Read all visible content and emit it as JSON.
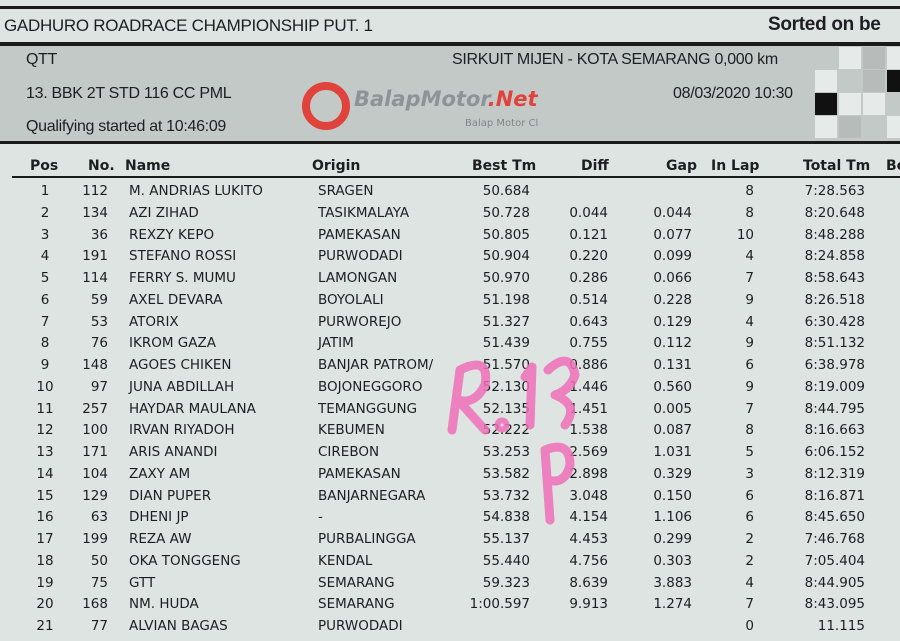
{
  "header": {
    "event_title": "GADHURO ROADRACE CHAMPIONSHIP PUT. 1",
    "sort_label": "Sorted on be",
    "session": "QTT",
    "circuit": "SIRKUIT MIJEN - KOTA SEMARANG 0,000 km",
    "class_name": "13. BBK 2T STD 116 CC PML",
    "datetime": "08/03/2020 10:30",
    "qualifying_start": "Qualifying started at 10:46:09"
  },
  "watermark": {
    "brand": "BalapMotor.Net",
    "tagline": "Balap Motor Cl"
  },
  "handwriting": {
    "note": "R.13 P",
    "color": "#f06fb8"
  },
  "table": {
    "columns": [
      "Pos",
      "No.",
      "Name",
      "Origin",
      "Best Tm",
      "Diff",
      "Gap",
      "In Lap",
      "Total Tm",
      "Be"
    ],
    "rows": [
      {
        "pos": "1",
        "no": "112",
        "name": "M. ANDRIAS LUKITO",
        "origin": "SRAGEN",
        "best": "50.684",
        "diff": "",
        "gap": "",
        "lap": "8",
        "total": "7:28.563"
      },
      {
        "pos": "2",
        "no": "134",
        "name": "AZI ZIHAD",
        "origin": "TASIKMALAYA",
        "best": "50.728",
        "diff": "0.044",
        "gap": "0.044",
        "lap": "8",
        "total": "8:20.648"
      },
      {
        "pos": "3",
        "no": "36",
        "name": "REXZY KEPO",
        "origin": "PAMEKASAN",
        "best": "50.805",
        "diff": "0.121",
        "gap": "0.077",
        "lap": "10",
        "total": "8:48.288"
      },
      {
        "pos": "4",
        "no": "191",
        "name": "STEFANO ROSSI",
        "origin": "PURWODADI",
        "best": "50.904",
        "diff": "0.220",
        "gap": "0.099",
        "lap": "4",
        "total": "8:24.858"
      },
      {
        "pos": "5",
        "no": "114",
        "name": "FERRY S. MUMU",
        "origin": "LAMONGAN",
        "best": "50.970",
        "diff": "0.286",
        "gap": "0.066",
        "lap": "7",
        "total": "8:58.643"
      },
      {
        "pos": "6",
        "no": "59",
        "name": "AXEL DEVARA",
        "origin": "BOYOLALI",
        "best": "51.198",
        "diff": "0.514",
        "gap": "0.228",
        "lap": "9",
        "total": "8:26.518"
      },
      {
        "pos": "7",
        "no": "53",
        "name": "ATORIX",
        "origin": "PURWOREJO",
        "best": "51.327",
        "diff": "0.643",
        "gap": "0.129",
        "lap": "4",
        "total": "6:30.428"
      },
      {
        "pos": "8",
        "no": "76",
        "name": "IKROM GAZA",
        "origin": "JATIM",
        "best": "51.439",
        "diff": "0.755",
        "gap": "0.112",
        "lap": "9",
        "total": "8:51.132"
      },
      {
        "pos": "9",
        "no": "148",
        "name": "AGOES CHIKEN",
        "origin": "BANJAR PATROM/",
        "best": "51.570",
        "diff": "0.886",
        "gap": "0.131",
        "lap": "6",
        "total": "6:38.978"
      },
      {
        "pos": "10",
        "no": "97",
        "name": "JUNA ABDILLAH",
        "origin": "BOJONEGGORO",
        "best": "52.130",
        "diff": "1.446",
        "gap": "0.560",
        "lap": "9",
        "total": "8:19.009"
      },
      {
        "pos": "11",
        "no": "257",
        "name": "HAYDAR MAULANA",
        "origin": "TEMANGGUNG",
        "best": "52.135",
        "diff": "1.451",
        "gap": "0.005",
        "lap": "7",
        "total": "8:44.795"
      },
      {
        "pos": "12",
        "no": "100",
        "name": "IRVAN RIYADOH",
        "origin": "KEBUMEN",
        "best": "52.222",
        "diff": "1.538",
        "gap": "0.087",
        "lap": "8",
        "total": "8:16.663"
      },
      {
        "pos": "13",
        "no": "171",
        "name": "ARIS ANANDI",
        "origin": "CIREBON",
        "best": "53.253",
        "diff": "2.569",
        "gap": "1.031",
        "lap": "5",
        "total": "6:06.152"
      },
      {
        "pos": "14",
        "no": "104",
        "name": "ZAXY AM",
        "origin": "PAMEKASAN",
        "best": "53.582",
        "diff": "2.898",
        "gap": "0.329",
        "lap": "3",
        "total": "8:12.319"
      },
      {
        "pos": "15",
        "no": "129",
        "name": "DIAN PUPER",
        "origin": "BANJARNEGARA",
        "best": "53.732",
        "diff": "3.048",
        "gap": "0.150",
        "lap": "6",
        "total": "8:16.871"
      },
      {
        "pos": "16",
        "no": "63",
        "name": "DHENI JP",
        "origin": "-",
        "best": "54.838",
        "diff": "4.154",
        "gap": "1.106",
        "lap": "6",
        "total": "8:45.650"
      },
      {
        "pos": "17",
        "no": "199",
        "name": "REZA AW",
        "origin": "PURBALINGGA",
        "best": "55.137",
        "diff": "4.453",
        "gap": "0.299",
        "lap": "2",
        "total": "7:46.768"
      },
      {
        "pos": "18",
        "no": "50",
        "name": "OKA TONGGENG",
        "origin": "KENDAL",
        "best": "55.440",
        "diff": "4.756",
        "gap": "0.303",
        "lap": "2",
        "total": "7:05.404"
      },
      {
        "pos": "19",
        "no": "75",
        "name": "GTT",
        "origin": "SEMARANG",
        "best": "59.323",
        "diff": "8.639",
        "gap": "3.883",
        "lap": "4",
        "total": "8:44.905"
      },
      {
        "pos": "20",
        "no": "168",
        "name": "NM. HUDA",
        "origin": "SEMARANG",
        "best": "1:00.597",
        "diff": "9.913",
        "gap": "1.274",
        "lap": "7",
        "total": "8:43.095"
      },
      {
        "pos": "21",
        "no": "77",
        "name": "ALVIAN BAGAS",
        "origin": "PURWODADI",
        "best": "",
        "diff": "",
        "gap": "",
        "lap": "0",
        "total": "11.115"
      }
    ]
  }
}
